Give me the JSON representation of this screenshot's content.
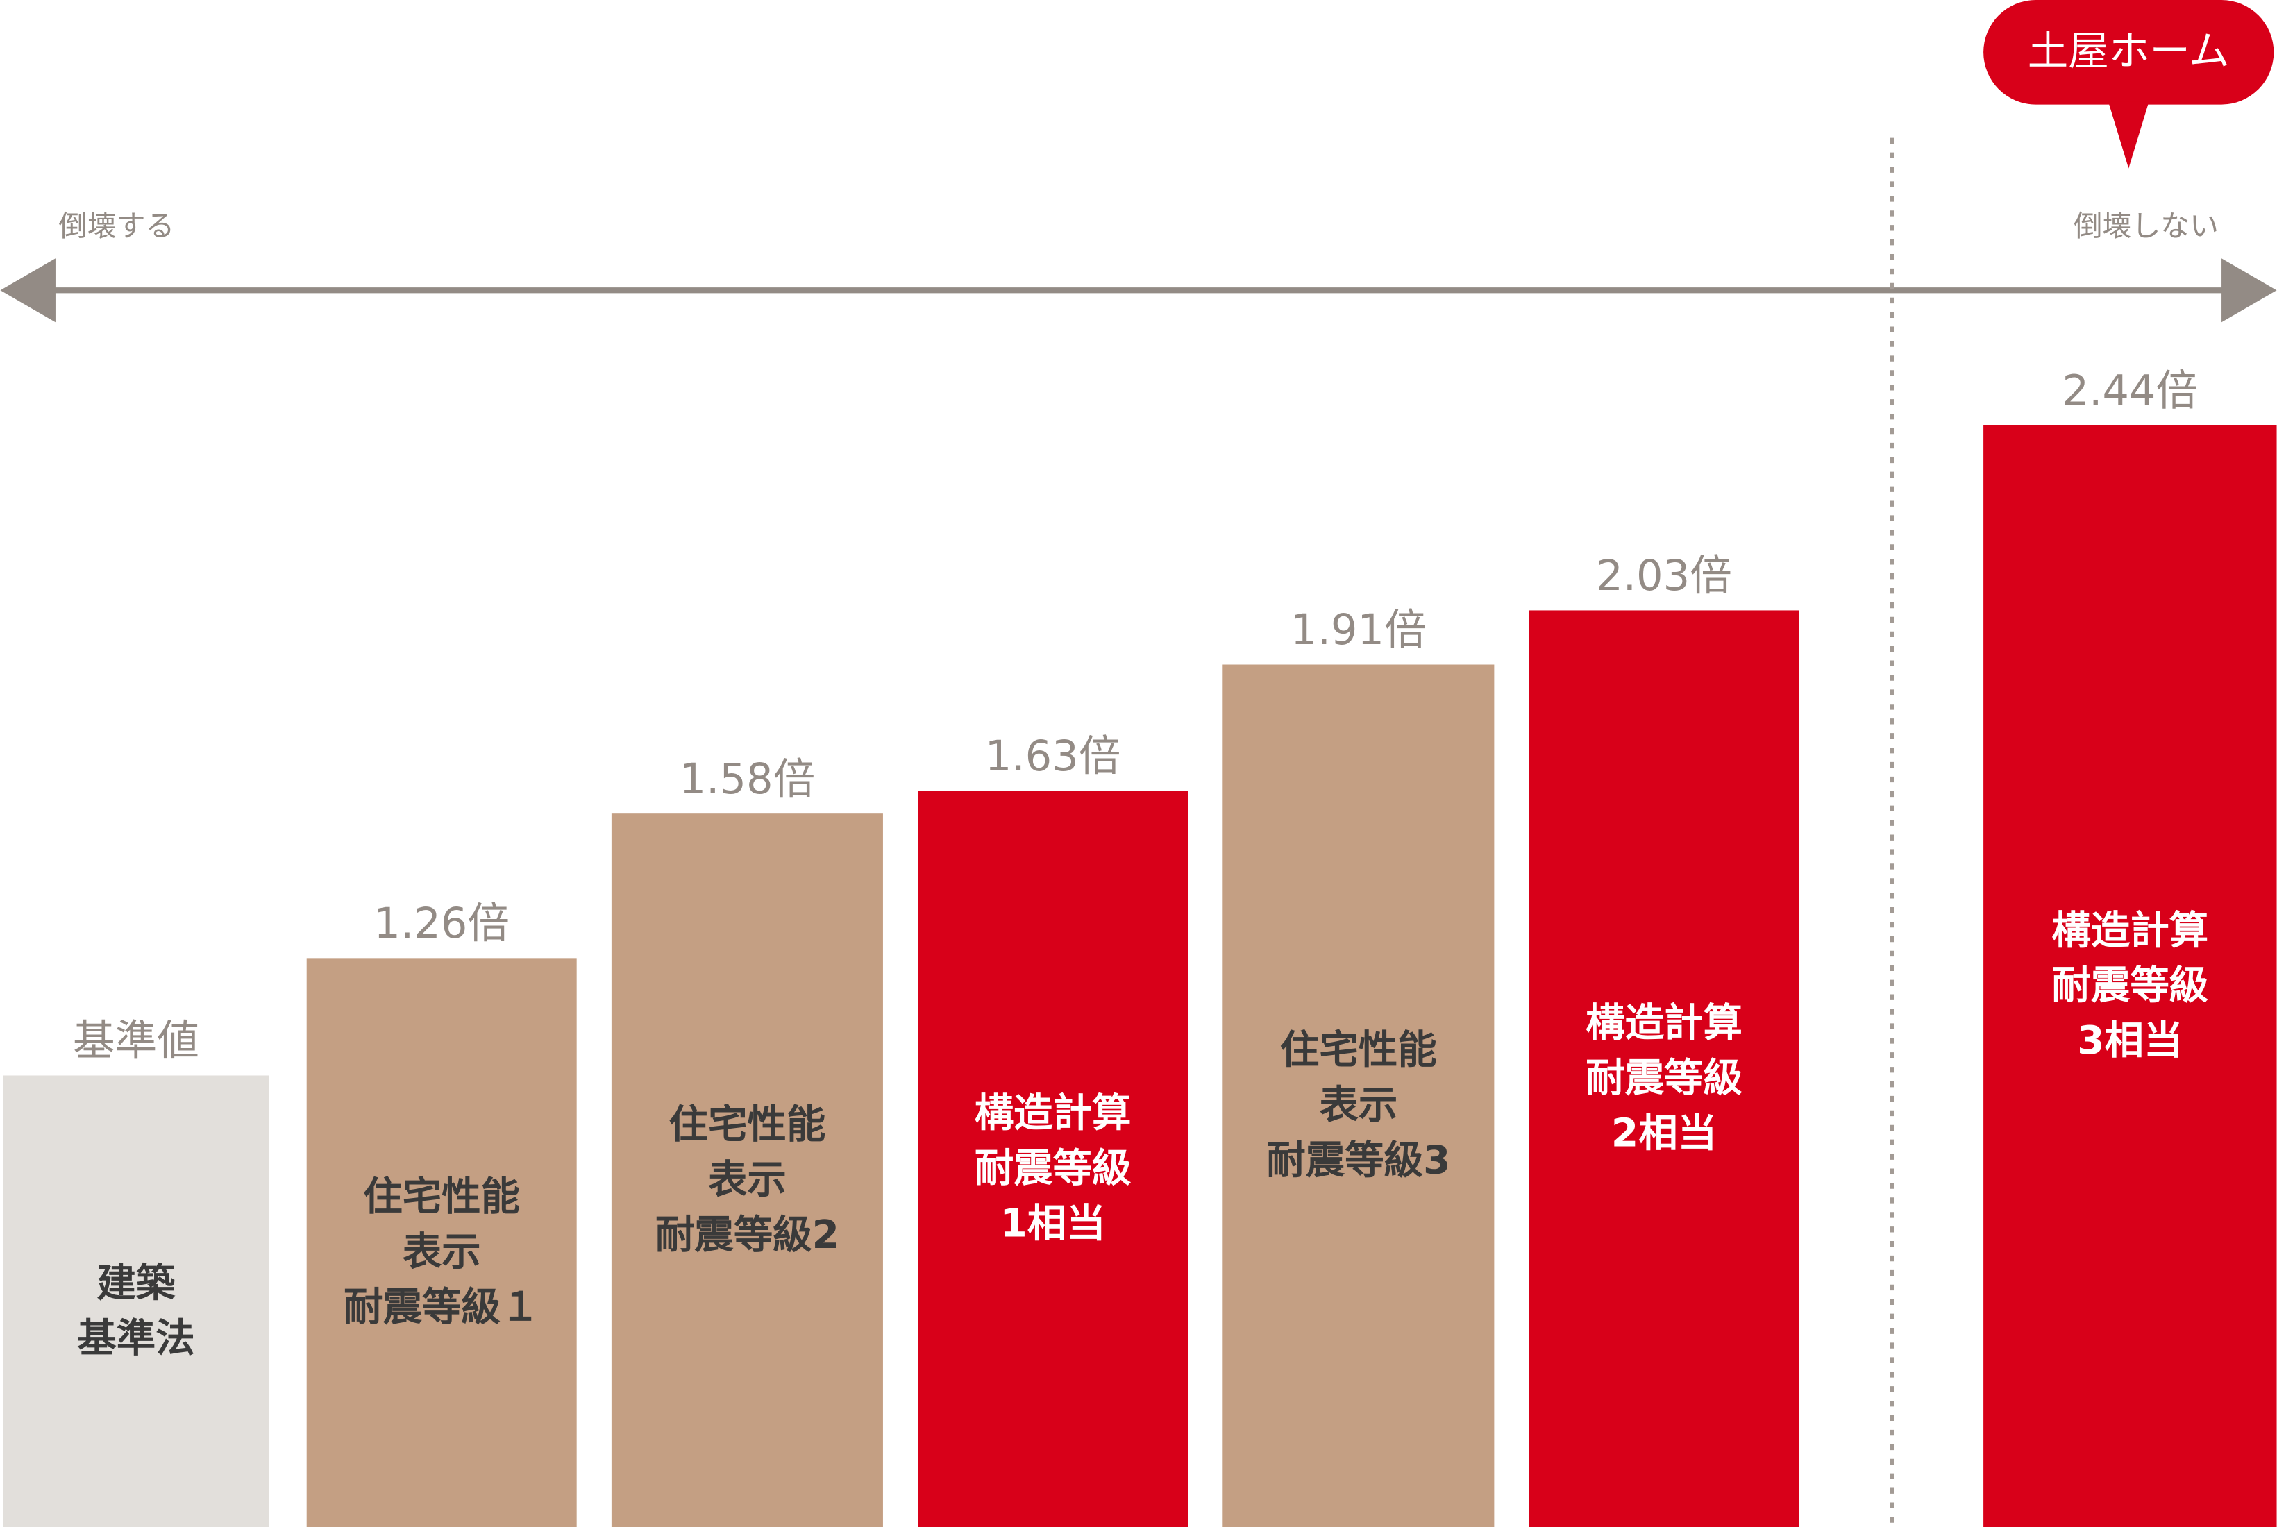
{
  "chart_data": {
    "type": "bar",
    "categories": [
      [
        "建築",
        "基準法"
      ],
      [
        "住宅性能",
        "表示",
        "耐震等級１"
      ],
      [
        "住宅性能",
        "表示",
        "耐震等級2"
      ],
      [
        "構造計算",
        "耐震等級",
        "1相当"
      ],
      [
        "住宅性能",
        "表示",
        "耐震等級3"
      ],
      [
        "構造計算",
        "耐震等級",
        "2相当"
      ],
      [
        "構造計算",
        "耐震等級",
        "3相当"
      ]
    ],
    "values": [
      1,
      1.26,
      1.58,
      1.63,
      1.91,
      2.03,
      2.44
    ],
    "value_labels": [
      "基準値",
      "1.26倍",
      "1.58倍",
      "1.63倍",
      "1.91倍",
      "2.03倍",
      "2.44倍"
    ],
    "colors": [
      "#e2dfdb",
      "#c49f83",
      "#c49f83",
      "#d80019",
      "#c49f83",
      "#d80019",
      "#d80019"
    ],
    "left_label": "倒壊する",
    "right_label": "倒壊しない",
    "callout": "土屋ホーム"
  }
}
